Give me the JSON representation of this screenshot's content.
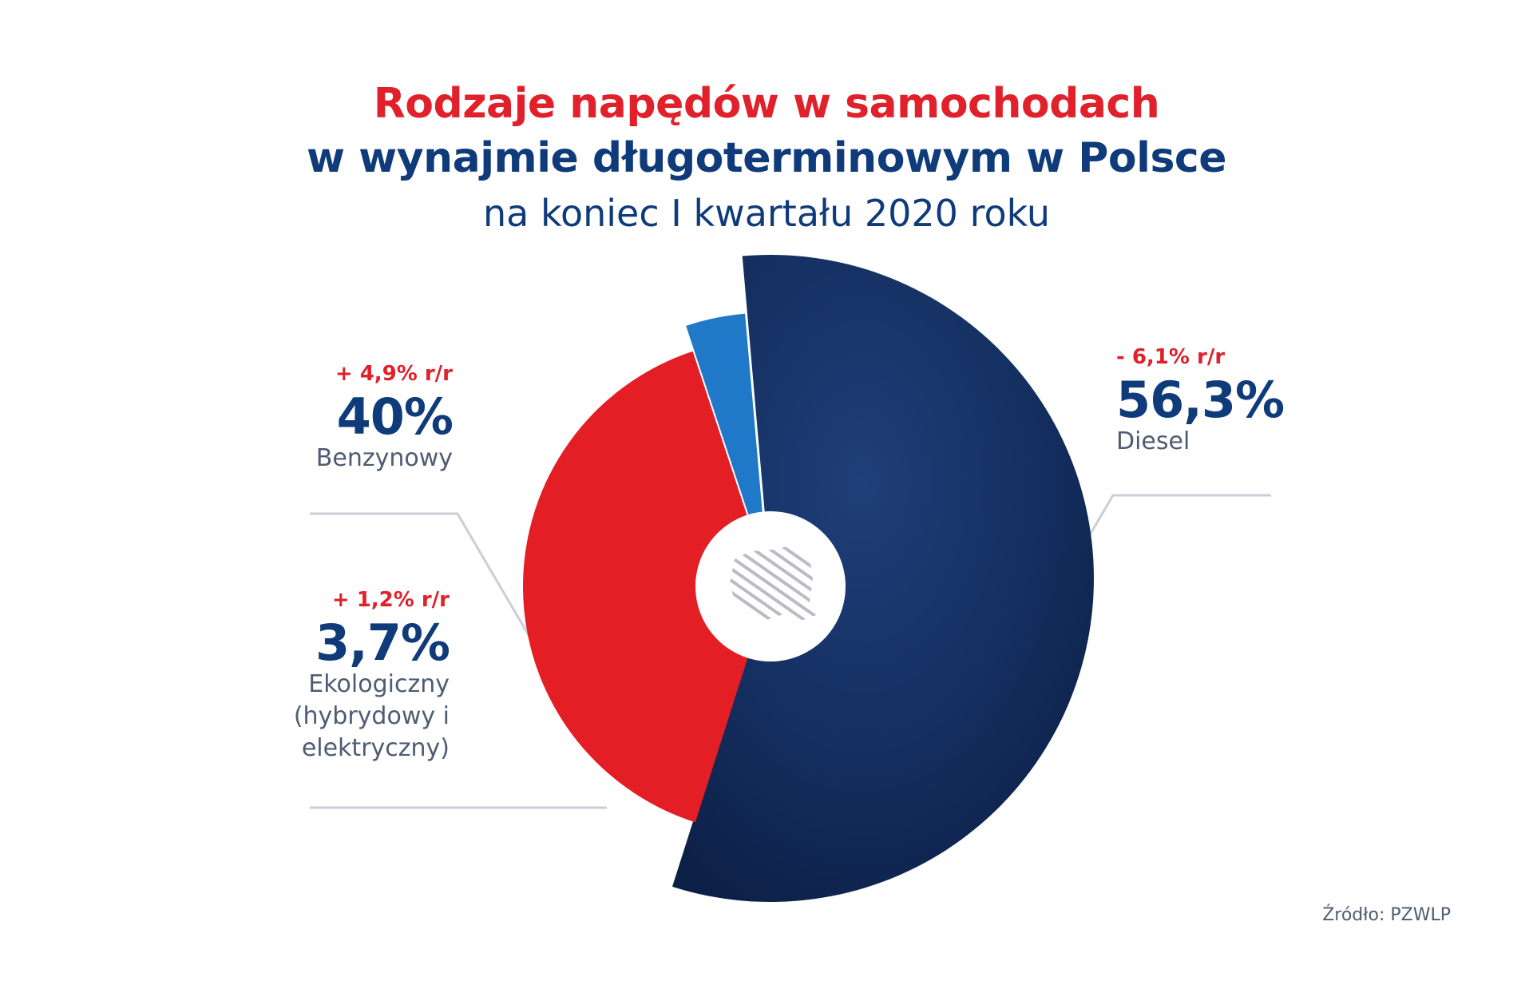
{
  "title": {
    "line1": "Rodzaje napędów w samochodach",
    "line2": "w wynajmie długoterminowym w Polsce",
    "line3": "na koniec I kwartału 2020 roku"
  },
  "chart_data": {
    "type": "pie",
    "title": "Rodzaje napędów w samochodach w wynajmie długoterminowym w Polsce na koniec I kwartału 2020 roku",
    "slices": [
      {
        "label": "Diesel",
        "value": 56.3,
        "value_label": "56,3%",
        "change_label": "- 6,1% r/r",
        "color": "#143465"
      },
      {
        "label": "Benzynowy",
        "value": 40.0,
        "value_label": "40%",
        "change_label": "+ 4,9% r/r",
        "color": "#e31e24"
      },
      {
        "label": "Ekologiczny (hybrydowy i elektryczny)",
        "value": 3.7,
        "value_label": "3,7%",
        "change_label": "+ 1,2% r/r",
        "color": "#1f78c8"
      }
    ]
  },
  "labels": {
    "diesel": {
      "change": "- 6,1% r/r",
      "pct": "56,3%",
      "name": "Diesel"
    },
    "benzyna": {
      "change": "+ 4,9% r/r",
      "pct": "40%",
      "name": "Benzynowy"
    },
    "eko": {
      "change": "+ 1,2% r/r",
      "pct": "3,7%",
      "name_lines": [
        "Ekologiczny",
        "(hybrydowy i",
        "elektryczny)"
      ]
    }
  },
  "source": "Źródło: PZWLP"
}
